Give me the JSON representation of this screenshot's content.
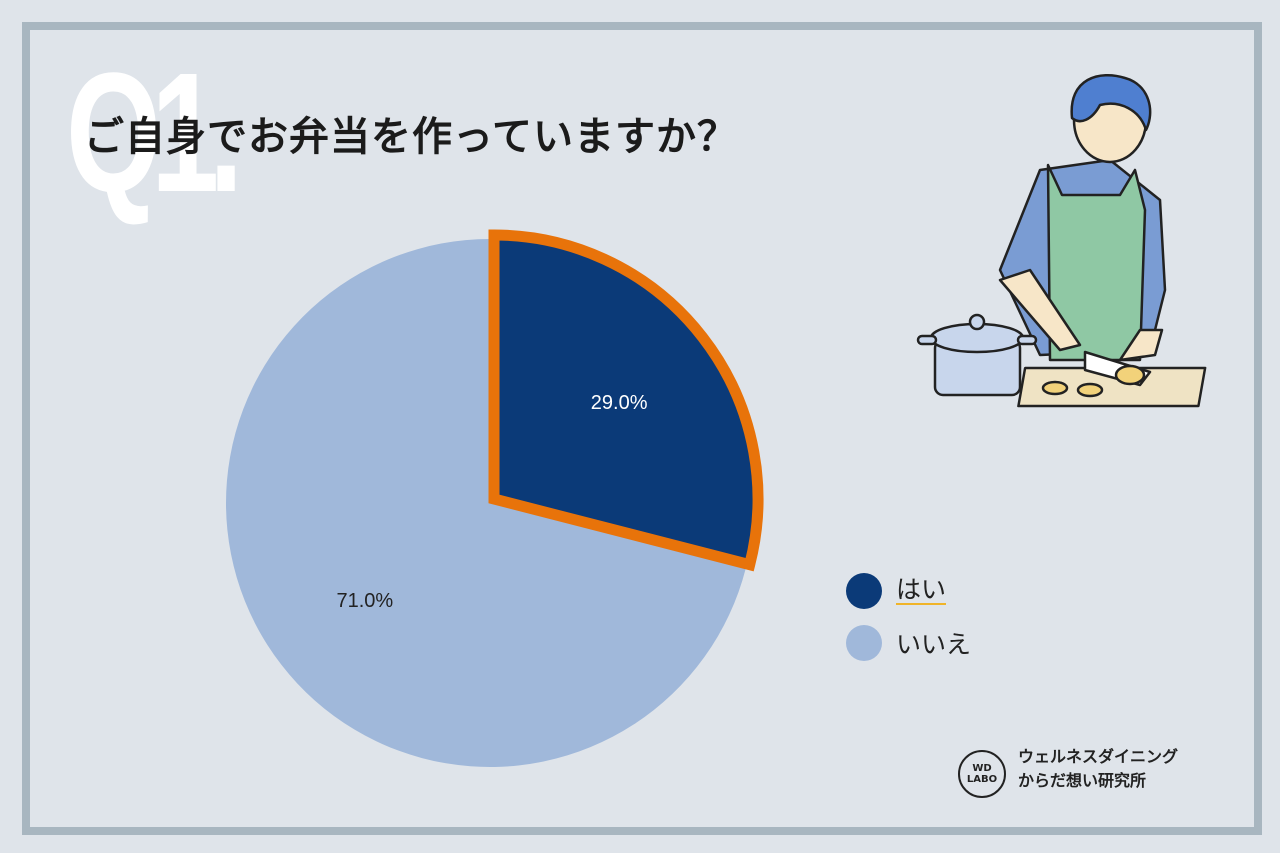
{
  "question_mark": "Q1.",
  "title": "ご自身でお弁当を作っていますか？",
  "colors": {
    "yes": "#0b3a78",
    "no": "#a0b8da",
    "highlight": "#e8730a",
    "background": "#dfe4ea",
    "frame": "#a8b6c0"
  },
  "chart_data": {
    "type": "pie",
    "title": "ご自身でお弁当を作っていますか？",
    "categories": [
      "はい",
      "いいえ"
    ],
    "values": [
      29.0,
      71.0
    ],
    "labels": [
      "29.0%",
      "71.0%"
    ],
    "highlighted": "はい",
    "legend_position": "right"
  },
  "legend": [
    {
      "label": "はい",
      "color": "#0b3a78"
    },
    {
      "label": "いいえ",
      "color": "#a0b8da"
    }
  ],
  "logo": {
    "badge_line1": "WD",
    "badge_line2": "LABO",
    "line1": "ウェルネスダイニング",
    "line2": "からだ想い研究所"
  },
  "illustration": "person-cooking-illustration"
}
